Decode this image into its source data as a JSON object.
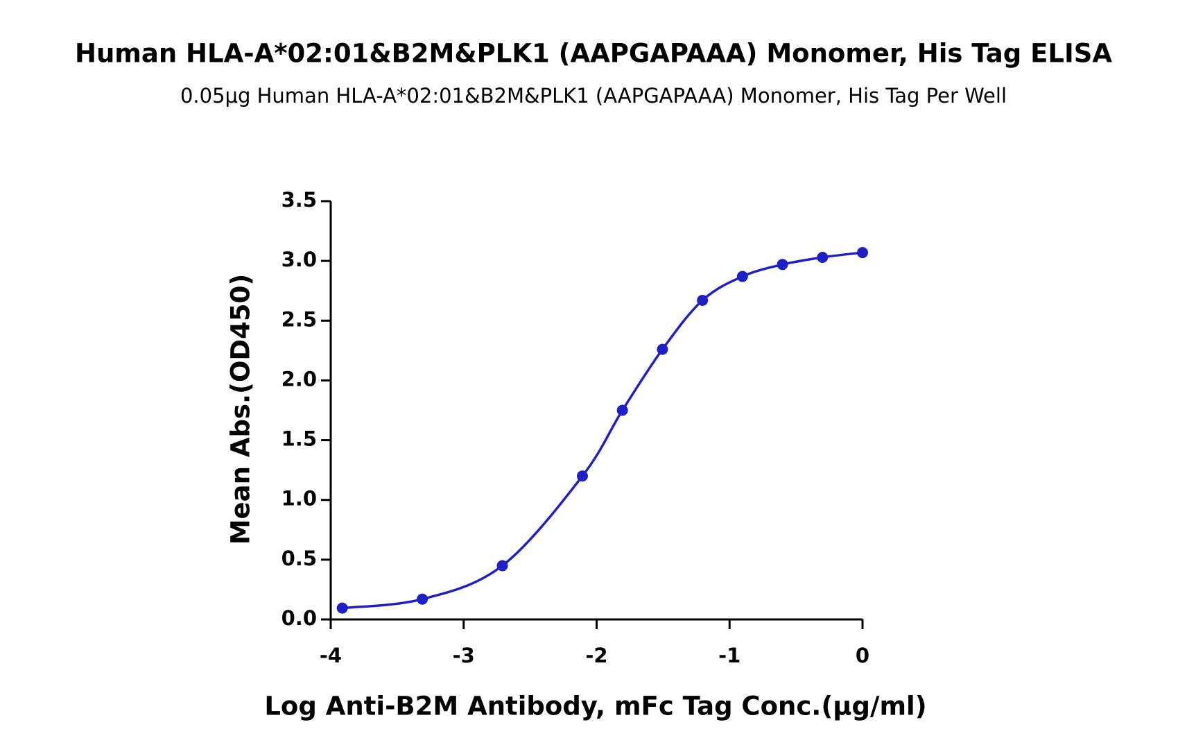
{
  "chart_data": {
    "type": "line",
    "title": "Human HLA-A*02:01&B2M&PLK1 (AAPGAPAAA) Monomer, His Tag ELISA",
    "subtitle": "0.05μg Human HLA-A*02:01&B2M&PLK1 (AAPGAPAAA) Monomer, His Tag Per Well",
    "x_label": "Log Anti-B2M Antibody, mFc Tag Conc.(μg/ml)",
    "y_label": "Mean Abs.(OD450)",
    "x": [
      -3.913,
      -3.311,
      -2.709,
      -2.107,
      -1.806,
      -1.505,
      -1.204,
      -0.903,
      -0.602,
      -0.301,
      0
    ],
    "series": [
      {
        "color": "#1f1fc8",
        "values": [
          0.095,
          0.17,
          0.45,
          1.2,
          1.75,
          2.26,
          2.67,
          2.87,
          2.97,
          3.03,
          3.07
        ]
      }
    ],
    "xlim": [
      -4,
      0
    ],
    "xticks": [
      -4,
      -3,
      -2,
      -1,
      0
    ],
    "ylim": [
      0,
      3.5
    ],
    "yticks": [
      {
        "value": 0,
        "label": "0.0"
      },
      {
        "value": 0.5,
        "label": "0.5"
      },
      {
        "value": 1,
        "label": "1.0"
      },
      {
        "value": 1.5,
        "label": "1.5"
      },
      {
        "value": 2,
        "label": "2.0"
      },
      {
        "value": 2.5,
        "label": "2.5"
      },
      {
        "value": 3,
        "label": "3.0"
      },
      {
        "value": 3.5,
        "label": "3.5"
      }
    ],
    "grid": false
  }
}
